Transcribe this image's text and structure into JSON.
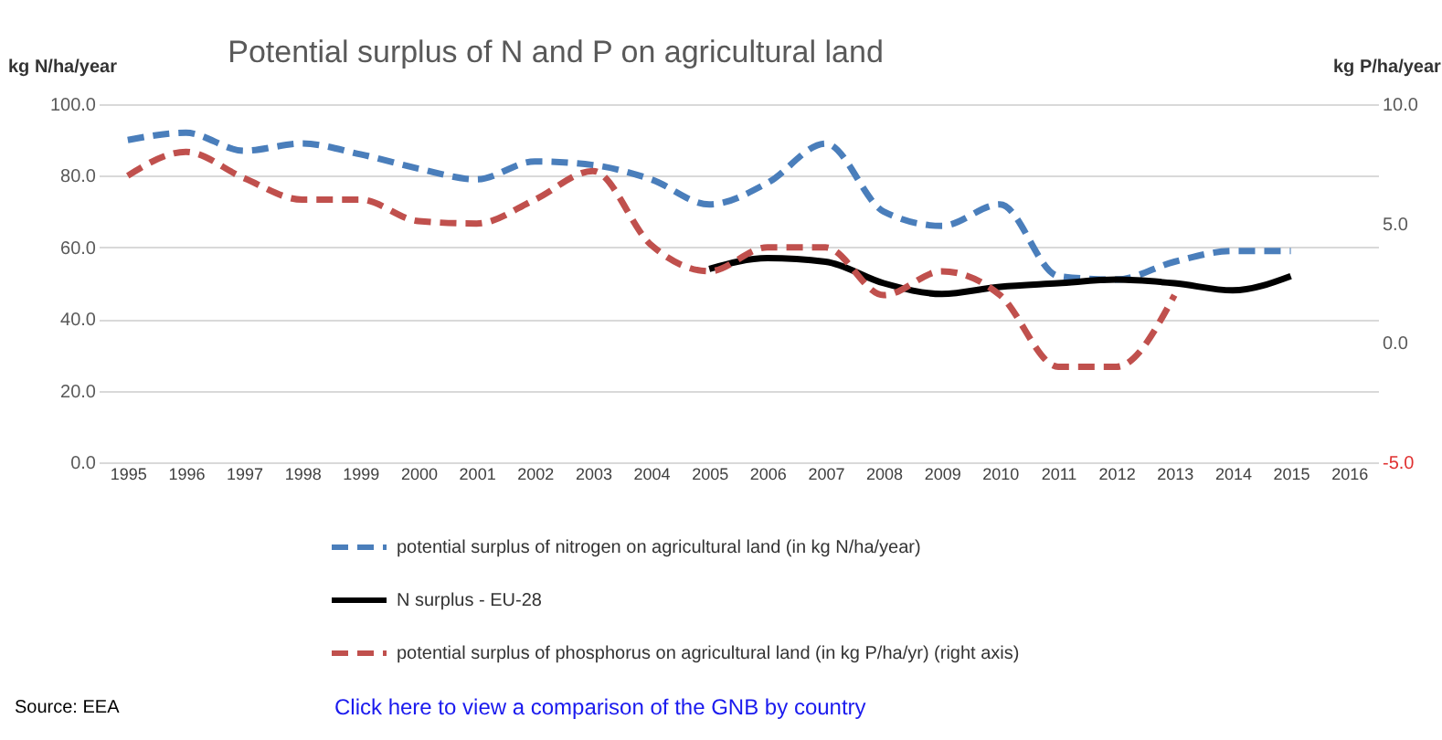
{
  "chart_data": {
    "type": "line",
    "title": "Potential surplus of N and P on agricultural land",
    "ylabel": "kg N/ha/year",
    "y2label": "kg P/ha/year",
    "categories": [
      "1995",
      "1996",
      "1997",
      "1998",
      "1999",
      "2000",
      "2001",
      "2002",
      "2003",
      "2004",
      "2005",
      "2006",
      "2007",
      "2008",
      "2009",
      "2010",
      "2011",
      "2012",
      "2013",
      "2014",
      "2015",
      "2016"
    ],
    "series": [
      {
        "name": "potential surplus of nitrogen on agricultural land (in kg N/ha/year)",
        "color": "#4a7ebb",
        "line_style": "dashed",
        "values": [
          90,
          92,
          87,
          89,
          86,
          82,
          79,
          84,
          83,
          79,
          72,
          78,
          89,
          70,
          66,
          72,
          52,
          51,
          56,
          59,
          59,
          null
        ]
      },
      {
        "name": "N surplus - EU-28",
        "color": "#000000",
        "line_style": "solid",
        "values": [
          null,
          null,
          null,
          null,
          null,
          null,
          null,
          null,
          null,
          null,
          54,
          57,
          56,
          50,
          47,
          49,
          50,
          51,
          50,
          48,
          52,
          null
        ]
      },
      {
        "name": "potential surplus of phosphorus on agricultural land (in kg P/ha/yr) (right axis)",
        "color": "#c0504d",
        "line_style": "dashed",
        "axis": "y2",
        "values": [
          7.0,
          8.0,
          6.9,
          6.0,
          6.0,
          5.1,
          5.0,
          6.0,
          7.2,
          4.1,
          3.0,
          4.0,
          4.0,
          2.0,
          3.0,
          2.0,
          -1.0,
          -1.0,
          2.0,
          null,
          null,
          null
        ]
      }
    ],
    "ylim": [
      0,
      100
    ],
    "yticks": [
      {
        "value": 0,
        "label": "0.0"
      },
      {
        "value": 20,
        "label": "20.0"
      },
      {
        "value": 40,
        "label": "40.0"
      },
      {
        "value": 60,
        "label": "60.0"
      },
      {
        "value": 80,
        "label": "80.0"
      },
      {
        "value": 100,
        "label": "100.0"
      }
    ],
    "y2lim": [
      -5,
      10
    ],
    "y2ticks": [
      {
        "value": -5,
        "label": "-5.0"
      },
      {
        "value": 0,
        "label": "0.0"
      },
      {
        "value": 5,
        "label": "5.0"
      },
      {
        "value": 10,
        "label": "10.0"
      }
    ],
    "grid": "y",
    "legend": "bottom",
    "marker": "none",
    "annotations": [
      "Source: EEA",
      "Click here to view a comparison of the GNB by country"
    ]
  }
}
